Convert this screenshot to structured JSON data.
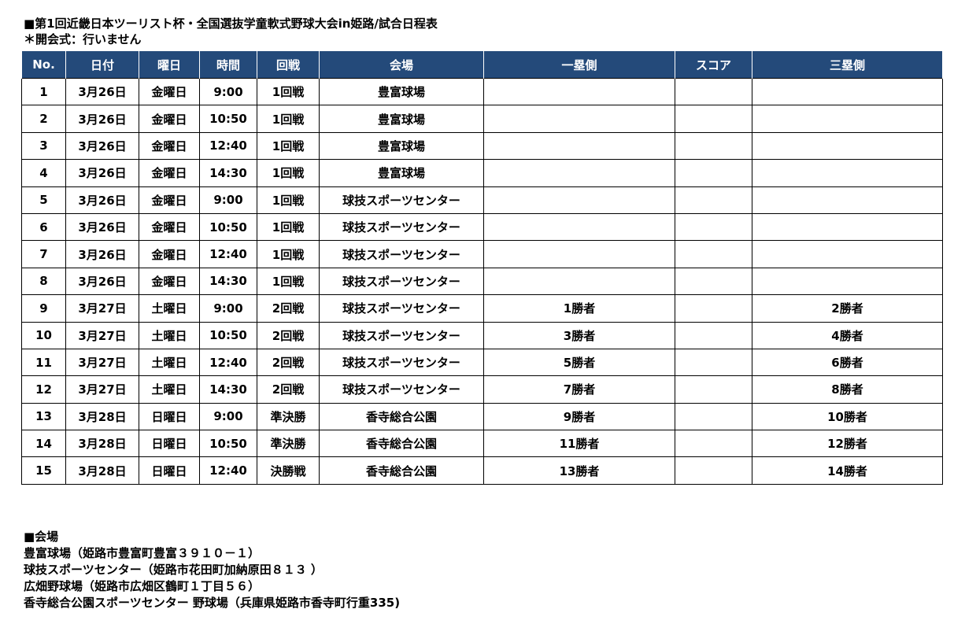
{
  "title": "■第1回近畿日本ツーリスト杯・全国選抜学童軟式野球大会in姫路/試合日程表",
  "note": "＊開会式：行いません",
  "table": {
    "headers": [
      "No.",
      "日付",
      "曜日",
      "時間",
      "回戦",
      "会場",
      "一塁側",
      "スコア",
      "三塁側"
    ],
    "rows": [
      [
        "1",
        "3月26日",
        "金曜日",
        "9:00",
        "1回戦",
        "豊富球場",
        "",
        "",
        ""
      ],
      [
        "2",
        "3月26日",
        "金曜日",
        "10:50",
        "1回戦",
        "豊富球場",
        "",
        "",
        ""
      ],
      [
        "3",
        "3月26日",
        "金曜日",
        "12:40",
        "1回戦",
        "豊富球場",
        "",
        "",
        ""
      ],
      [
        "4",
        "3月26日",
        "金曜日",
        "14:30",
        "1回戦",
        "豊富球場",
        "",
        "",
        ""
      ],
      [
        "5",
        "3月26日",
        "金曜日",
        "9:00",
        "1回戦",
        "球技スポーツセンター",
        "",
        "",
        ""
      ],
      [
        "6",
        "3月26日",
        "金曜日",
        "10:50",
        "1回戦",
        "球技スポーツセンター",
        "",
        "",
        ""
      ],
      [
        "7",
        "3月26日",
        "金曜日",
        "12:40",
        "1回戦",
        "球技スポーツセンター",
        "",
        "",
        ""
      ],
      [
        "8",
        "3月26日",
        "金曜日",
        "14:30",
        "1回戦",
        "球技スポーツセンター",
        "",
        "",
        ""
      ],
      [
        "9",
        "3月27日",
        "土曜日",
        "9:00",
        "2回戦",
        "球技スポーツセンター",
        "1勝者",
        "",
        "2勝者"
      ],
      [
        "10",
        "3月27日",
        "土曜日",
        "10:50",
        "2回戦",
        "球技スポーツセンター",
        "3勝者",
        "",
        "4勝者"
      ],
      [
        "11",
        "3月27日",
        "土曜日",
        "12:40",
        "2回戦",
        "球技スポーツセンター",
        "5勝者",
        "",
        "6勝者"
      ],
      [
        "12",
        "3月27日",
        "土曜日",
        "14:30",
        "2回戦",
        "球技スポーツセンター",
        "7勝者",
        "",
        "8勝者"
      ],
      [
        "13",
        "3月28日",
        "日曜日",
        "9:00",
        "準決勝",
        "香寺総合公園",
        "9勝者",
        "",
        "10勝者"
      ],
      [
        "14",
        "3月28日",
        "日曜日",
        "10:50",
        "準決勝",
        "香寺総合公園",
        "11勝者",
        "",
        "12勝者"
      ],
      [
        "15",
        "3月28日",
        "日曜日",
        "12:40",
        "決勝戦",
        "香寺総合公園",
        "13勝者",
        "",
        "14勝者"
      ]
    ]
  },
  "venues": {
    "heading": "■会場",
    "items": [
      "豊富球場（姫路市豊富町豊富３９１０－１）",
      "球技スポーツセンター（姫路市花田町加納原田８１３ ）",
      "広畑野球場（姫路市広畑区鶴町１丁目５６）",
      "香寺総合公園スポーツセンター 野球場（兵庫県姫路市香寺町行重335)"
    ]
  },
  "colors": {
    "header_bg": "#244a7a",
    "header_text": "#ffffff"
  }
}
